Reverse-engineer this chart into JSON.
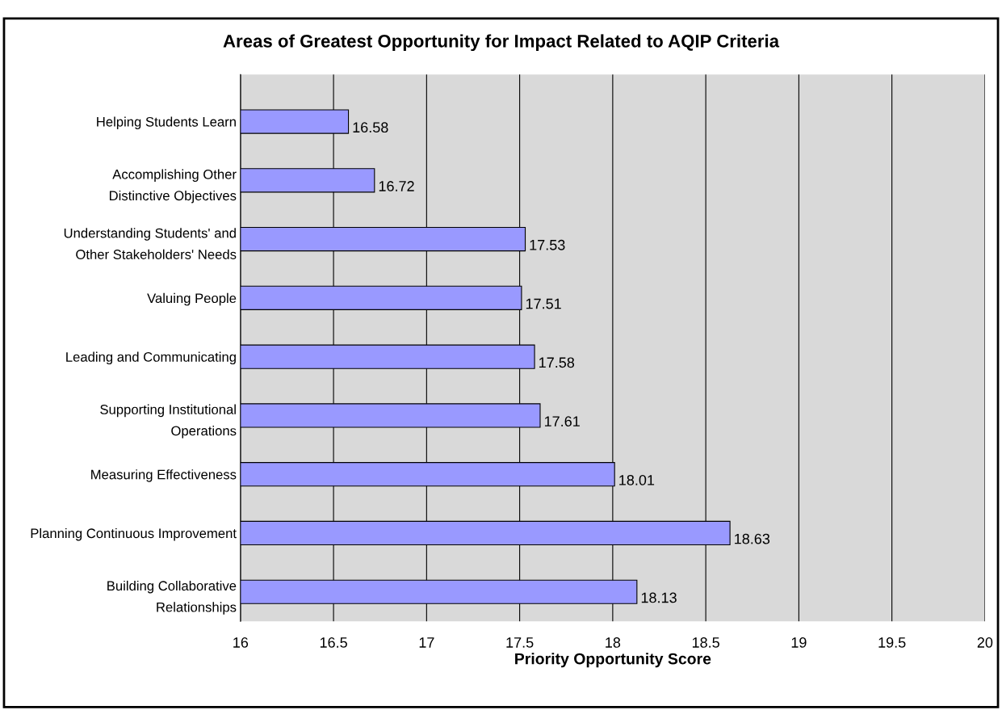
{
  "chart_data": {
    "type": "bar",
    "orientation": "horizontal",
    "title": "Areas of Greatest Opportunity for Impact Related to AQIP Criteria",
    "xlabel": "Priority Opportunity Score",
    "categories": [
      "Helping Students Learn",
      "Accomplishing Other\nDistinctive Objectives",
      "Understanding Students' and\nOther Stakeholders' Needs",
      "Valuing People",
      "Leading and Communicating",
      "Supporting Institutional\nOperations",
      "Measuring Effectiveness",
      "Planning Continuous Improvement",
      "Building Collaborative\nRelationships"
    ],
    "values": [
      16.58,
      16.72,
      17.53,
      17.51,
      17.58,
      17.61,
      18.01,
      18.63,
      18.13
    ],
    "color": "#9999ff",
    "xlim": [
      16,
      20
    ],
    "xticks": [
      16,
      16.5,
      17,
      17.5,
      18,
      18.5,
      19,
      19.5,
      20
    ],
    "grid": "x",
    "data_labels": true
  }
}
